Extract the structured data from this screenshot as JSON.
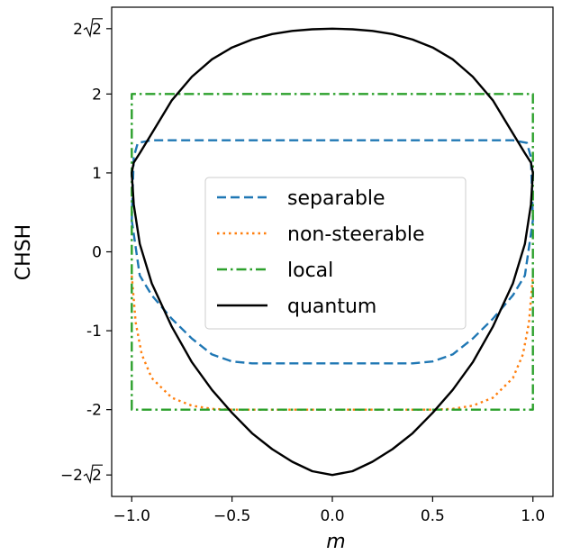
{
  "chart_data": {
    "type": "line",
    "xlabel": "m",
    "ylabel": "CHSH",
    "xlim": [
      -1.1,
      1.1
    ],
    "ylim": [
      -3.1,
      3.1
    ],
    "x_ticks": [
      {
        "value": -1.0,
        "label": "−1.0"
      },
      {
        "value": -0.5,
        "label": "−0.5"
      },
      {
        "value": 0.0,
        "label": "0.0"
      },
      {
        "value": 0.5,
        "label": "0.5"
      },
      {
        "value": 1.0,
        "label": "1.0"
      }
    ],
    "y_ticks": [
      {
        "value": -2.828,
        "label": "−2√2",
        "base": "−2",
        "radicand": "2"
      },
      {
        "value": -2,
        "label": "-2"
      },
      {
        "value": -1,
        "label": "-1"
      },
      {
        "value": 0,
        "label": "0"
      },
      {
        "value": 1,
        "label": "1"
      },
      {
        "value": 2,
        "label": "2"
      },
      {
        "value": 2.828,
        "label": "2√2",
        "base": "2",
        "radicand": "2"
      }
    ],
    "legend_position": "center",
    "grid": false,
    "series": [
      {
        "name": "separable",
        "color": "#1f77b4",
        "style": "dashed",
        "closed": true,
        "points": [
          [
            -1.0,
            0.4
          ],
          [
            -0.99,
            1.2
          ],
          [
            -0.97,
            1.38
          ],
          [
            -0.9,
            1.414
          ],
          [
            -0.5,
            1.414
          ],
          [
            0.0,
            1.414
          ],
          [
            0.5,
            1.414
          ],
          [
            0.9,
            1.414
          ],
          [
            0.97,
            1.38
          ],
          [
            0.99,
            1.2
          ],
          [
            1.0,
            0.4
          ],
          [
            0.96,
            -0.3
          ],
          [
            0.9,
            -0.55
          ],
          [
            0.8,
            -0.85
          ],
          [
            0.7,
            -1.1
          ],
          [
            0.6,
            -1.3
          ],
          [
            0.5,
            -1.39
          ],
          [
            0.4,
            -1.414
          ],
          [
            0.0,
            -1.414
          ],
          [
            -0.4,
            -1.414
          ],
          [
            -0.5,
            -1.39
          ],
          [
            -0.6,
            -1.3
          ],
          [
            -0.7,
            -1.1
          ],
          [
            -0.8,
            -0.85
          ],
          [
            -0.9,
            -0.55
          ],
          [
            -0.96,
            -0.3
          ],
          [
            -1.0,
            0.4
          ]
        ]
      },
      {
        "name": "non-steerable",
        "color": "#ff7f0e",
        "style": "dotted",
        "closed": false,
        "points": [
          [
            -1.0,
            -0.3
          ],
          [
            -0.98,
            -0.9
          ],
          [
            -0.95,
            -1.3
          ],
          [
            -0.9,
            -1.6
          ],
          [
            -0.8,
            -1.85
          ],
          [
            -0.7,
            -1.95
          ],
          [
            -0.6,
            -1.99
          ],
          [
            -0.5,
            -2.0
          ],
          [
            0.5,
            -2.0
          ],
          [
            0.6,
            -1.99
          ],
          [
            0.7,
            -1.95
          ],
          [
            0.8,
            -1.85
          ],
          [
            0.9,
            -1.6
          ],
          [
            0.95,
            -1.3
          ],
          [
            0.98,
            -0.9
          ],
          [
            1.0,
            -0.3
          ]
        ]
      },
      {
        "name": "local",
        "color": "#2ca02c",
        "style": "dashdot",
        "closed": true,
        "points": [
          [
            -1.0,
            -2.0
          ],
          [
            -1.0,
            2.0
          ],
          [
            1.0,
            2.0
          ],
          [
            1.0,
            -2.0
          ],
          [
            -1.0,
            -2.0
          ]
        ]
      },
      {
        "name": "quantum",
        "color": "#000000",
        "style": "solid",
        "closed": true,
        "points": [
          [
            0.0,
            2.828
          ],
          [
            0.1,
            2.82
          ],
          [
            0.2,
            2.8
          ],
          [
            0.3,
            2.76
          ],
          [
            0.4,
            2.69
          ],
          [
            0.5,
            2.59
          ],
          [
            0.6,
            2.44
          ],
          [
            0.7,
            2.22
          ],
          [
            0.8,
            1.92
          ],
          [
            0.9,
            1.5
          ],
          [
            0.96,
            1.25
          ],
          [
            0.99,
            1.13
          ],
          [
            1.0,
            1.0
          ],
          [
            0.99,
            0.6
          ],
          [
            0.96,
            0.1
          ],
          [
            0.9,
            -0.4
          ],
          [
            0.8,
            -0.95
          ],
          [
            0.7,
            -1.4
          ],
          [
            0.6,
            -1.75
          ],
          [
            0.5,
            -2.04
          ],
          [
            0.4,
            -2.3
          ],
          [
            0.3,
            -2.5
          ],
          [
            0.2,
            -2.66
          ],
          [
            0.1,
            -2.78
          ],
          [
            0.0,
            -2.828
          ],
          [
            -0.1,
            -2.78
          ],
          [
            -0.2,
            -2.66
          ],
          [
            -0.3,
            -2.5
          ],
          [
            -0.4,
            -2.3
          ],
          [
            -0.5,
            -2.04
          ],
          [
            -0.6,
            -1.75
          ],
          [
            -0.7,
            -1.4
          ],
          [
            -0.8,
            -0.95
          ],
          [
            -0.9,
            -0.4
          ],
          [
            -0.96,
            0.1
          ],
          [
            -0.99,
            0.6
          ],
          [
            -1.0,
            1.0
          ],
          [
            -0.99,
            1.13
          ],
          [
            -0.96,
            1.25
          ],
          [
            -0.9,
            1.5
          ],
          [
            -0.8,
            1.92
          ],
          [
            -0.7,
            2.22
          ],
          [
            -0.6,
            2.44
          ],
          [
            -0.5,
            2.59
          ],
          [
            -0.4,
            2.69
          ],
          [
            -0.3,
            2.76
          ],
          [
            -0.2,
            2.8
          ],
          [
            -0.1,
            2.82
          ],
          [
            0.0,
            2.828
          ]
        ]
      }
    ]
  }
}
